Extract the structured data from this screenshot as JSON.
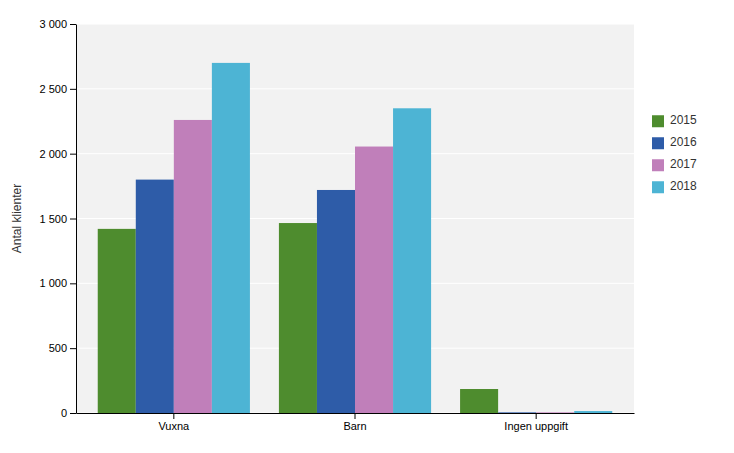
{
  "chart_data": {
    "type": "bar",
    "categories": [
      "Vuxna",
      "Barn",
      "Ingen uppgift"
    ],
    "series": [
      {
        "name": "2015",
        "color": "#4e8c2e",
        "values": [
          1420,
          1465,
          185
        ]
      },
      {
        "name": "2016",
        "color": "#2e5ca8",
        "values": [
          1800,
          1720,
          5
        ]
      },
      {
        "name": "2017",
        "color": "#c07fba",
        "values": [
          2260,
          2055,
          5
        ]
      },
      {
        "name": "2018",
        "color": "#4db4d4",
        "values": [
          2700,
          2350,
          15
        ]
      }
    ],
    "ylabel": "Antal klienter",
    "ylim": [
      0,
      3000
    ],
    "yticks": [
      0,
      500,
      {
        "value": 1000,
        "label": "1 000"
      },
      {
        "value": 1500,
        "label": "1 500"
      },
      {
        "value": 2000,
        "label": "2 000"
      },
      {
        "value": 2500,
        "label": "2 500"
      },
      {
        "value": 3000,
        "label": "3 000"
      }
    ],
    "grid": true,
    "legend": "right"
  }
}
